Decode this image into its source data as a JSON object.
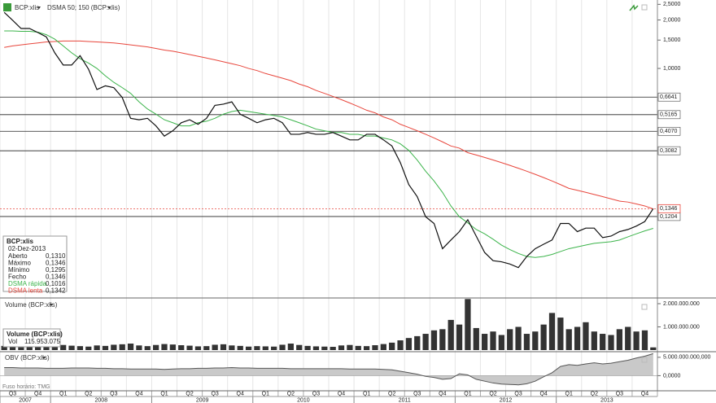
{
  "chart_data": [
    {
      "type": "line",
      "title": "BCP:xlis",
      "subtitle": "DSMA 50; 150 (BCP:xlis)",
      "log_scale": true,
      "grid": true,
      "ylim": [
        0.038,
        2.66
      ],
      "yticks": [
        {
          "value": 2.5,
          "label": "2,5000"
        },
        {
          "value": 2,
          "label": "2,0000"
        },
        {
          "value": 1.5,
          "label": "1,5000"
        },
        {
          "value": 1,
          "label": "1,0000"
        }
      ],
      "levels": [
        {
          "value": 0.6641,
          "label": "0,6641"
        },
        {
          "value": 0.5165,
          "label": "0,5165"
        },
        {
          "value": 0.407,
          "label": "0,4070"
        },
        {
          "value": 0.3082,
          "label": "0,3082"
        },
        {
          "value": 0.1204,
          "label": "0,1204"
        }
      ],
      "last_price": {
        "value": 0.1346,
        "label": "0,1346",
        "color": "#e8463c"
      },
      "info": {
        "date": "02-Dez-2013",
        "rows": [
          {
            "label": "Aberto",
            "value": "0,1310"
          },
          {
            "label": "Máximo",
            "value": "0,1346"
          },
          {
            "label": "Mínimo",
            "value": "0,1295"
          },
          {
            "label": "Fecho",
            "value": "0,1346"
          }
        ]
      },
      "series": [
        {
          "name": "BCP:xlis",
          "color": "#111111",
          "values": [
            2.23,
            1.99,
            1.77,
            1.77,
            1.67,
            1.57,
            1.25,
            1.05,
            1.05,
            1.2,
            0.99,
            0.74,
            0.78,
            0.76,
            0.66,
            0.49,
            0.48,
            0.49,
            0.44,
            0.38,
            0.41,
            0.46,
            0.48,
            0.45,
            0.49,
            0.59,
            0.6,
            0.62,
            0.52,
            0.49,
            0.46,
            0.48,
            0.49,
            0.46,
            0.39,
            0.39,
            0.4,
            0.39,
            0.39,
            0.4,
            0.38,
            0.36,
            0.36,
            0.39,
            0.39,
            0.36,
            0.33,
            0.26,
            0.19,
            0.16,
            0.12,
            0.109,
            0.076,
            0.086,
            0.097,
            0.115,
            0.091,
            0.072,
            0.064,
            0.063,
            0.061,
            0.058,
            0.068,
            0.076,
            0.081,
            0.086,
            0.109,
            0.109,
            0.097,
            0.102,
            0.102,
            0.089,
            0.091,
            0.097,
            0.1,
            0.105,
            0.112,
            0.1346
          ]
        },
        {
          "name": "DSMA rápida",
          "color": "#3cb44b",
          "readout": "0,1016",
          "values": [
            1.71,
            1.71,
            1.7,
            1.7,
            1.68,
            1.62,
            1.52,
            1.38,
            1.25,
            1.15,
            1.08,
            1.0,
            0.9,
            0.82,
            0.76,
            0.7,
            0.62,
            0.56,
            0.52,
            0.48,
            0.46,
            0.44,
            0.44,
            0.46,
            0.47,
            0.49,
            0.52,
            0.54,
            0.55,
            0.54,
            0.53,
            0.52,
            0.51,
            0.5,
            0.48,
            0.46,
            0.44,
            0.42,
            0.41,
            0.4,
            0.4,
            0.39,
            0.39,
            0.38,
            0.38,
            0.37,
            0.36,
            0.34,
            0.31,
            0.27,
            0.23,
            0.2,
            0.17,
            0.14,
            0.12,
            0.11,
            0.1,
            0.094,
            0.087,
            0.08,
            0.075,
            0.071,
            0.068,
            0.067,
            0.068,
            0.07,
            0.073,
            0.076,
            0.078,
            0.08,
            0.082,
            0.083,
            0.084,
            0.086,
            0.09,
            0.094,
            0.098,
            0.1016
          ]
        },
        {
          "name": "DSMA lenta",
          "color": "#e8463c",
          "readout": "0,1342",
          "values": [
            1.35,
            1.38,
            1.4,
            1.42,
            1.44,
            1.46,
            1.47,
            1.48,
            1.48,
            1.48,
            1.47,
            1.46,
            1.45,
            1.44,
            1.42,
            1.4,
            1.38,
            1.36,
            1.33,
            1.3,
            1.28,
            1.25,
            1.22,
            1.19,
            1.16,
            1.13,
            1.1,
            1.07,
            1.04,
            1.0,
            0.97,
            0.93,
            0.9,
            0.87,
            0.84,
            0.8,
            0.77,
            0.73,
            0.7,
            0.67,
            0.64,
            0.61,
            0.58,
            0.55,
            0.53,
            0.5,
            0.48,
            0.45,
            0.43,
            0.41,
            0.39,
            0.37,
            0.35,
            0.33,
            0.32,
            0.3,
            0.29,
            0.28,
            0.27,
            0.26,
            0.25,
            0.24,
            0.23,
            0.22,
            0.21,
            0.2,
            0.19,
            0.18,
            0.175,
            0.17,
            0.165,
            0.16,
            0.155,
            0.15,
            0.148,
            0.144,
            0.14,
            0.1342
          ]
        }
      ]
    },
    {
      "type": "bar",
      "title": "Volume (BCP:xlis)",
      "color": "#333333",
      "ylim": [
        0,
        2210000000
      ],
      "yticks": [
        {
          "value": 2000000000,
          "label": "2.000.000.000"
        },
        {
          "value": 1000000000,
          "label": "1.000.000.000"
        }
      ],
      "info": {
        "label": "Vol",
        "readout": "115.953.075"
      },
      "values": [
        180000000,
        150000000,
        120000000,
        140000000,
        160000000,
        200000000,
        260000000,
        220000000,
        190000000,
        170000000,
        150000000,
        200000000,
        180000000,
        230000000,
        250000000,
        280000000,
        200000000,
        170000000,
        220000000,
        260000000,
        240000000,
        210000000,
        190000000,
        160000000,
        170000000,
        230000000,
        250000000,
        200000000,
        180000000,
        150000000,
        170000000,
        160000000,
        150000000,
        230000000,
        280000000,
        220000000,
        180000000,
        160000000,
        150000000,
        140000000,
        200000000,
        220000000,
        180000000,
        170000000,
        210000000,
        260000000,
        320000000,
        420000000,
        520000000,
        600000000,
        700000000,
        850000000,
        900000000,
        1300000000,
        1100000000,
        2200000000,
        950000000,
        700000000,
        800000000,
        650000000,
        900000000,
        1000000000,
        700000000,
        800000000,
        1100000000,
        1600000000,
        1400000000,
        900000000,
        1000000000,
        1200000000,
        800000000,
        700000000,
        650000000,
        900000000,
        1000000000,
        800000000,
        850000000,
        115953075
      ]
    },
    {
      "type": "area",
      "title": "OBV (BCP:xlis)",
      "note": "Fuso horário: TMG",
      "color": "#555555",
      "fill": "#c9c9c9",
      "ylim": [
        -3900000000,
        6300000000
      ],
      "yticks": [
        {
          "value": 5000000000,
          "label": "5.000.000.000,000"
        },
        {
          "value": 0,
          "label": "0,0000"
        }
      ],
      "values": [
        2200000000,
        2200000000,
        2100000000,
        2100000000,
        2100000000,
        2000000000,
        2000000000,
        2000000000,
        2100000000,
        2100000000,
        2100000000,
        2000000000,
        2000000000,
        1900000000,
        1900000000,
        1800000000,
        1800000000,
        1800000000,
        1800000000,
        1700000000,
        1800000000,
        1900000000,
        1900000000,
        2000000000,
        2000000000,
        2100000000,
        2100000000,
        2200000000,
        2100000000,
        2100000000,
        2000000000,
        2000000000,
        2000000000,
        2000000000,
        1900000000,
        1900000000,
        1900000000,
        1900000000,
        1900000000,
        1900000000,
        1900000000,
        1800000000,
        1800000000,
        1800000000,
        1800000000,
        1700000000,
        1600000000,
        1200000000,
        800000000,
        400000000,
        -200000000,
        -500000000,
        -1000000000,
        -800000000,
        500000000,
        200000000,
        -1000000000,
        -1500000000,
        -2000000000,
        -2300000000,
        -2400000000,
        -2500000000,
        -2200000000,
        -1500000000,
        -300000000,
        800000000,
        2500000000,
        3000000000,
        2800000000,
        3200000000,
        3500000000,
        3200000000,
        3400000000,
        3800000000,
        4200000000,
        4800000000,
        5300000000,
        6000000000
      ],
      "categories": [
        null,
        "Q3",
        null,
        null,
        "Q4",
        null,
        null,
        "Q1",
        null,
        null,
        "Q2",
        null,
        null,
        "Q3",
        null,
        null,
        "Q4",
        null,
        null,
        "Q1",
        null,
        null,
        "Q2",
        null,
        null,
        "Q3",
        null,
        null,
        "Q4",
        null,
        null,
        "Q1",
        null,
        null,
        "Q2",
        null,
        null,
        "Q3",
        null,
        null,
        "Q4",
        null,
        null,
        "Q1",
        null,
        null,
        "Q2",
        null,
        null,
        "Q3",
        null,
        null,
        "Q4",
        null,
        null,
        "Q1",
        null,
        null,
        "Q2",
        null,
        null,
        "Q3",
        null,
        null,
        "Q4",
        null,
        null,
        "Q1",
        null,
        null,
        "Q2",
        null,
        null,
        "Q3",
        null,
        null,
        "Q4",
        null
      ],
      "years": [
        "2007",
        "2008",
        "2009",
        "2010",
        "2011",
        "2012",
        "2013"
      ]
    }
  ]
}
